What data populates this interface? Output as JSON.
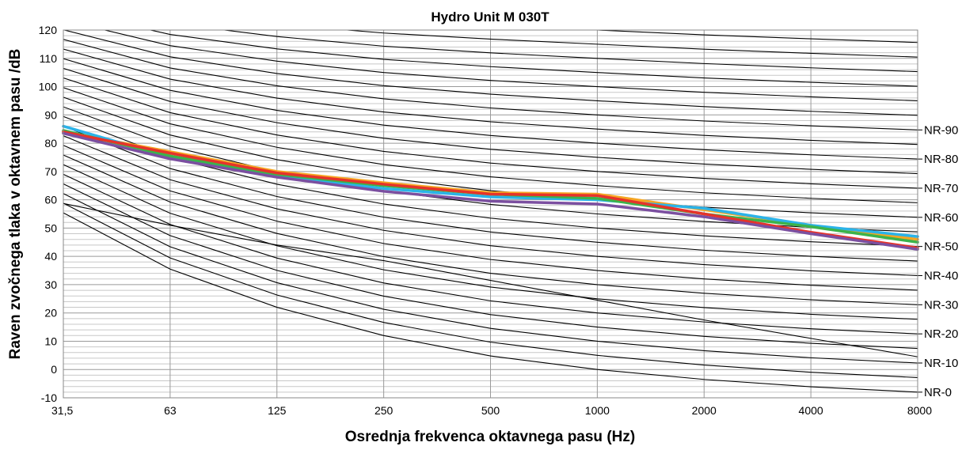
{
  "chart_data": {
    "type": "line",
    "title": "Hydro Unit M 030T",
    "xlabel": "Osrednja frekvenca oktavnega pasu (Hz)",
    "ylabel": "Raven zvočnega tlaka v oktavnem pasu /dB",
    "categories": [
      "31,5",
      "63",
      "125",
      "250",
      "500",
      "1000",
      "2000",
      "4000",
      "8000"
    ],
    "ylim": [
      -10,
      120
    ],
    "yticks": [
      -10,
      0,
      10,
      20,
      30,
      40,
      50,
      60,
      70,
      80,
      90,
      100,
      110,
      120
    ],
    "grid": true,
    "nr_curves": {
      "base_values_nr0": [
        55.4,
        35.5,
        22.0,
        12.0,
        4.8,
        0.0,
        -3.5,
        -6.1,
        -8.0
      ],
      "slopes": [
        0.681,
        0.79,
        0.87,
        0.93,
        0.974,
        1.0,
        1.015,
        1.025,
        1.03
      ],
      "levels": [
        0,
        5,
        10,
        15,
        20,
        25,
        30,
        35,
        40,
        45,
        50,
        55,
        60,
        65,
        70,
        75,
        80,
        85,
        90,
        95,
        100,
        105,
        110,
        115,
        120,
        125,
        130
      ],
      "labels": [
        "NR-0",
        "NR-10",
        "NR-20",
        "NR-30",
        "NR-40",
        "NR-50",
        "NR-60",
        "NR-70",
        "NR-80",
        "NR-90"
      ],
      "labeled_levels": [
        0,
        10,
        20,
        30,
        40,
        50,
        60,
        70,
        80,
        90
      ]
    },
    "extra_lines": [
      {
        "values": [
          58.7,
          51.0,
          44.0,
          38.5,
          31.5,
          24.5,
          17.5,
          11.0,
          4.5
        ]
      }
    ],
    "series": [
      {
        "color": "#f5a623",
        "values": [
          84.0,
          77.0,
          70.0,
          66.0,
          62.5,
          62.0,
          56.5,
          51.0,
          46.0
        ]
      },
      {
        "color": "#2bb3e8",
        "values": [
          86.0,
          75.0,
          68.5,
          64.0,
          61.0,
          60.0,
          57.0,
          51.0,
          47.0
        ]
      },
      {
        "color": "#3cb34a",
        "values": [
          84.5,
          75.5,
          69.0,
          65.0,
          62.0,
          60.5,
          55.0,
          50.5,
          45.0
        ]
      },
      {
        "color": "#e6332a",
        "values": [
          84.0,
          76.5,
          69.5,
          65.5,
          62.0,
          61.5,
          55.0,
          48.5,
          43.0
        ]
      },
      {
        "color": "#7b4fa0",
        "values": [
          83.5,
          74.5,
          68.0,
          63.0,
          59.5,
          58.5,
          54.0,
          48.0,
          42.5
        ]
      }
    ]
  }
}
